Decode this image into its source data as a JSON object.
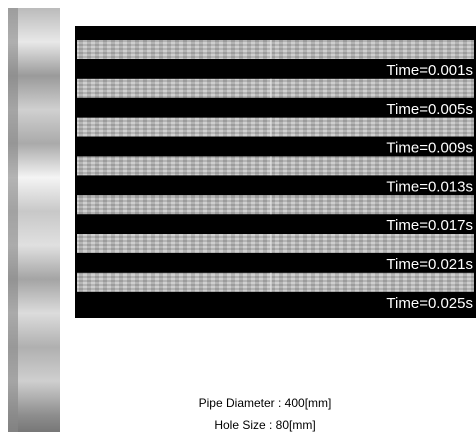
{
  "panels": [
    {
      "label": "Time=0.001s"
    },
    {
      "label": "Time=0.005s"
    },
    {
      "label": "Time=0.009s"
    },
    {
      "label": "Time=0.013s"
    },
    {
      "label": "Time=0.017s"
    },
    {
      "label": "Time=0.021s"
    },
    {
      "label": "Time=0.025s"
    }
  ],
  "caption": {
    "lines": [
      "Pipe Diameter : 400[mm]",
      "Hole Size : 80[mm]"
    ]
  }
}
